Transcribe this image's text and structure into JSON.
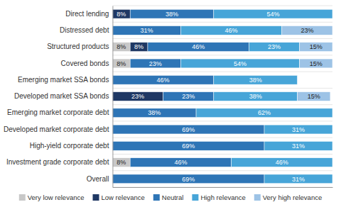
{
  "chart_data": {
    "type": "bar",
    "orientation": "horizontal",
    "stacked": true,
    "categories": [
      "Overall",
      "Investment grade corporate debt",
      "High-yield corporate debt",
      "Developed market corporate debt",
      "Emerging market corporate debt",
      "Developed market SSA bonds",
      "Emerging market SSA bonds",
      "Covered bonds",
      "Structured products",
      "Distressed debt",
      "Direct lending"
    ],
    "series": [
      {
        "name": "Very low relevance",
        "color": "#c8c8c8",
        "values": [
          0,
          8,
          0,
          0,
          0,
          0,
          0,
          8,
          8,
          0,
          0
        ],
        "value_labels": [
          null,
          "8%",
          null,
          null,
          null,
          null,
          null,
          "8%",
          "8%",
          null,
          null
        ]
      },
      {
        "name": "Low relevance",
        "color": "#1f3864",
        "values": [
          0,
          0,
          0,
          0,
          0,
          23,
          0,
          0,
          8,
          0,
          8
        ],
        "value_labels": [
          null,
          null,
          null,
          null,
          null,
          "23%",
          null,
          null,
          "8%",
          null,
          "8%"
        ]
      },
      {
        "name": "Neutral",
        "color": "#2e75b6",
        "values": [
          69,
          46,
          69,
          69,
          38,
          23,
          46,
          23,
          46,
          31,
          38
        ],
        "value_labels": [
          "69%",
          "46%",
          "69%",
          "69%",
          "38%",
          "23%",
          "46%",
          "23%",
          "46%",
          "31%",
          "38%"
        ]
      },
      {
        "name": "High relevance",
        "color": "#47a5d8",
        "values": [
          31,
          46,
          31,
          31,
          62,
          38,
          38,
          54,
          23,
          46,
          54
        ],
        "value_labels": [
          "31%",
          "46%",
          "31%",
          "31%",
          "62%",
          "38%",
          "38%",
          "54%",
          "23%",
          "46%",
          "54%"
        ]
      },
      {
        "name": "Very high relevance",
        "color": "#9dc3e6",
        "values": [
          0,
          0,
          0,
          0,
          0,
          15,
          0,
          15,
          15,
          23,
          0
        ],
        "value_labels": [
          null,
          null,
          null,
          null,
          null,
          "15%",
          null,
          "15%",
          "15%",
          "23%",
          null
        ]
      }
    ],
    "xlim": [
      0,
      100
    ],
    "xticks": [],
    "data_labels": true,
    "tick_labels": "y",
    "grid": true,
    "legend": "bottom"
  }
}
